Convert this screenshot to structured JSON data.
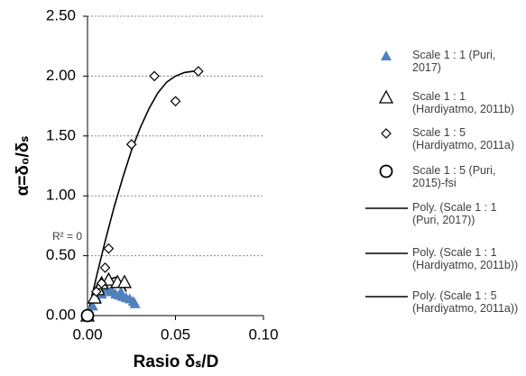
{
  "chart_data": {
    "type": "scatter",
    "x_label": "Rasio δₛ/D",
    "y_label": "α=δ₀/δₛ",
    "annotation": "R² = 0",
    "xlim": [
      0,
      0.1
    ],
    "xticks": [
      {
        "value": 0,
        "label": "0.00"
      },
      {
        "value": 0.05,
        "label": "0.05"
      },
      {
        "value": 0.1,
        "label": "0.10"
      }
    ],
    "ylim": [
      0,
      2.5
    ],
    "yticks": [
      {
        "value": 0,
        "label": "0.00"
      },
      {
        "value": 0.5,
        "label": "0.50"
      },
      {
        "value": 1,
        "label": "1.00"
      },
      {
        "value": 1.5,
        "label": "1.50"
      },
      {
        "value": 2,
        "label": "2.00"
      },
      {
        "value": 2.5,
        "label": "2.50"
      }
    ],
    "grid": true,
    "legend": "right",
    "series": [
      {
        "name": "Scale 1 : 1 (Puri, 2017)",
        "color": "#4f81bd",
        "marker": "triangle-filled",
        "x": [
          0.003,
          0.005,
          0.007,
          0.008,
          0.009,
          0.011,
          0.013,
          0.014,
          0.016,
          0.018,
          0.019,
          0.02,
          0.022,
          0.024,
          0.026,
          0.027
        ],
        "values": [
          0.08,
          0.15,
          0.2,
          0.18,
          0.25,
          0.22,
          0.2,
          0.21,
          0.18,
          0.17,
          0.2,
          0.16,
          0.15,
          0.14,
          0.12,
          0.1
        ]
      },
      {
        "name": "Scale 1 : 1 (Hardiyatmo, 2011b)",
        "color": "#000000",
        "marker": "triangle-open",
        "x": [
          0,
          0.004,
          0.006,
          0.008,
          0.012,
          0.017,
          0.021
        ],
        "values": [
          0,
          0.15,
          0.22,
          0.27,
          0.3,
          0.28,
          0.28
        ]
      },
      {
        "name": "Scale 1 : 5 (Hardiyatmo, 2011a)",
        "color": "#000000",
        "marker": "diamond",
        "x": [
          0,
          0.005,
          0.008,
          0.01,
          0.012,
          0.025,
          0.038,
          0.05,
          0.063
        ],
        "values": [
          0,
          0.2,
          0.27,
          0.4,
          0.56,
          1.43,
          2.0,
          1.79,
          2.04
        ]
      },
      {
        "name": "Scale 1 : 5 (Puri, 2015)-fsi",
        "color": "#000000",
        "marker": "circle",
        "x": [
          0
        ],
        "values": [
          0
        ]
      },
      {
        "name": "Poly. (Scale 1 : 1 (Puri, 2017))",
        "color": "#000000",
        "marker": "line",
        "x": [
          0,
          0.002,
          0.004,
          0.006,
          0.008,
          0.01,
          0.012,
          0.014,
          0.016,
          0.018,
          0.02,
          0.022,
          0.024,
          0.026,
          0.028
        ],
        "values": [
          0,
          0.07,
          0.12,
          0.17,
          0.2,
          0.22,
          0.22,
          0.21,
          0.2,
          0.18,
          0.17,
          0.15,
          0.13,
          0.11,
          0.1
        ]
      },
      {
        "name": "Poly. (Scale 1 : 1 (Hardiyatmo, 2011b))",
        "color": "#000000",
        "marker": "line",
        "x": [
          0,
          0.002,
          0.004,
          0.006,
          0.008,
          0.01,
          0.012,
          0.014,
          0.016,
          0.018,
          0.02,
          0.022
        ],
        "values": [
          0,
          0.07,
          0.12,
          0.18,
          0.22,
          0.26,
          0.29,
          0.31,
          0.32,
          0.3,
          0.26,
          0.2
        ]
      },
      {
        "name": "Poly. (Scale 1 : 5 (Hardiyatmo, 2011a))",
        "color": "#000000",
        "marker": "line",
        "x": [
          0,
          0.005,
          0.01,
          0.015,
          0.02,
          0.025,
          0.03,
          0.035,
          0.04,
          0.045,
          0.05,
          0.055,
          0.06,
          0.063
        ],
        "values": [
          0,
          0.32,
          0.62,
          0.9,
          1.15,
          1.38,
          1.57,
          1.73,
          1.86,
          1.95,
          2.0,
          2.03,
          2.04,
          2.04
        ]
      }
    ]
  }
}
